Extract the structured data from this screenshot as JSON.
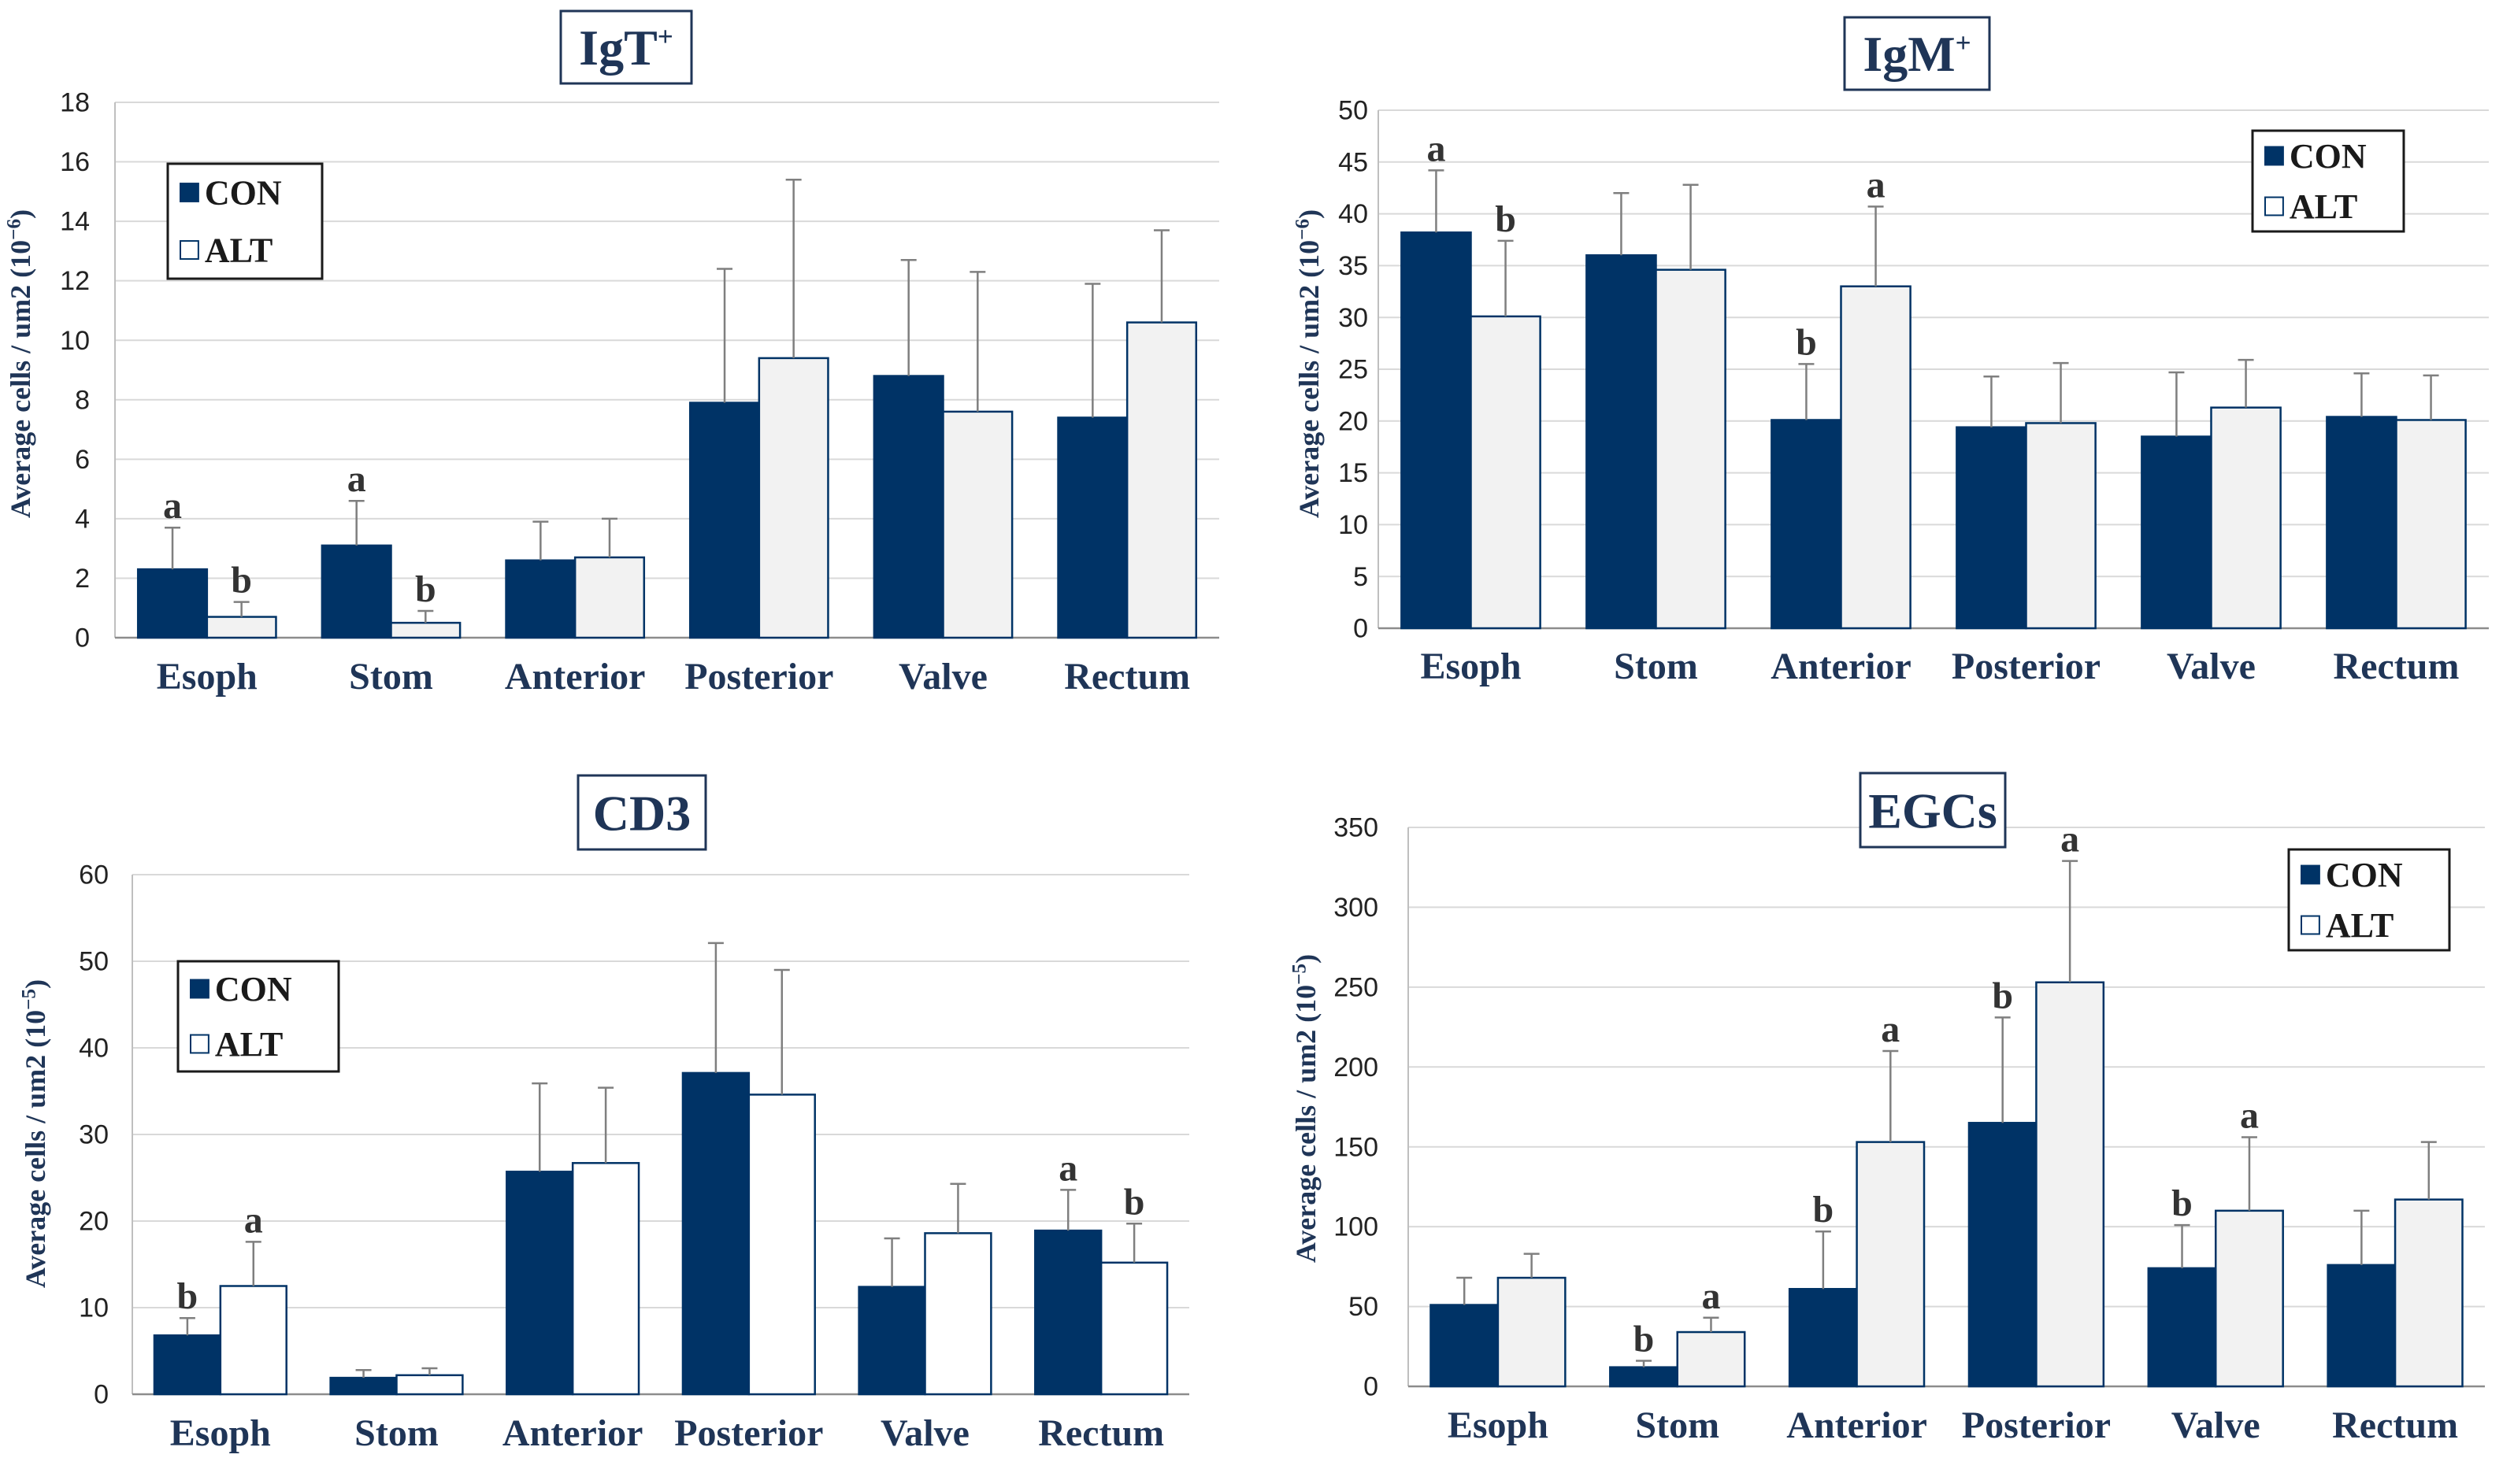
{
  "chart_data": [
    {
      "type": "bar",
      "title": "IgT",
      "title_sup": "+",
      "ylabel": "Average cells / um2 (10",
      "ylabel_exp": "−6",
      "ylabel_close": ")",
      "ylim": [
        0,
        18
      ],
      "ystep": 2,
      "categories": [
        "Esoph",
        "Stom",
        "Anterior",
        "Posterior",
        "Valve",
        "Rectum"
      ],
      "series": [
        {
          "name": "CON",
          "values": [
            2.3,
            3.1,
            2.6,
            7.9,
            8.8,
            7.4
          ],
          "errors": [
            1.4,
            1.5,
            1.3,
            4.5,
            3.9,
            4.5
          ],
          "letters": [
            "a",
            "a",
            "",
            "",
            "",
            ""
          ],
          "color": "#003366"
        },
        {
          "name": "ALT",
          "values": [
            0.7,
            0.5,
            2.7,
            9.4,
            7.6,
            10.6
          ],
          "errors": [
            0.5,
            0.4,
            1.3,
            6.0,
            4.7,
            3.1
          ],
          "letters": [
            "b",
            "b",
            "",
            "",
            "",
            ""
          ],
          "color": "#f2f2f2"
        }
      ],
      "legend": {
        "position": "top-left",
        "con_label": "CON",
        "alt_label": "ALT"
      },
      "grid": true
    },
    {
      "type": "bar",
      "title": "IgM",
      "title_sup": "+",
      "ylabel": "Average cells / um2 (10",
      "ylabel_exp": "−6",
      "ylabel_close": ")",
      "ylim": [
        0,
        50
      ],
      "ystep": 5,
      "categories": [
        "Esoph",
        "Stom",
        "Anterior",
        "Posterior",
        "Valve",
        "Rectum"
      ],
      "series": [
        {
          "name": "CON",
          "values": [
            38.2,
            36.0,
            20.1,
            19.4,
            18.5,
            20.4
          ],
          "errors": [
            6.0,
            6.0,
            5.4,
            4.9,
            6.2,
            4.2
          ],
          "letters": [
            "a",
            "",
            "b",
            "",
            "",
            ""
          ],
          "color": "#003366"
        },
        {
          "name": "ALT",
          "values": [
            30.1,
            34.6,
            33.0,
            19.8,
            21.3,
            20.1
          ],
          "errors": [
            7.3,
            8.2,
            7.7,
            5.8,
            4.6,
            4.3
          ],
          "letters": [
            "b",
            "",
            "a",
            "",
            "",
            ""
          ],
          "color": "#f2f2f2"
        }
      ],
      "legend": {
        "position": "top-right",
        "con_label": "CON",
        "alt_label": "ALT"
      },
      "grid": true
    },
    {
      "type": "bar",
      "title": "CD3",
      "title_sup": "",
      "ylabel": "Average cells / um2 (10",
      "ylabel_exp": "−5",
      "ylabel_close": ")",
      "ylim": [
        0,
        60
      ],
      "ystep": 10,
      "categories": [
        "Esoph",
        "Stom",
        "Anterior",
        "Posterior",
        "Valve",
        "Rectum"
      ],
      "series": [
        {
          "name": "CON",
          "values": [
            6.8,
            1.9,
            25.7,
            37.1,
            12.4,
            18.9
          ],
          "errors": [
            2.0,
            0.9,
            10.2,
            15.0,
            5.6,
            4.7
          ],
          "letters": [
            "b",
            "",
            "",
            "",
            "",
            "a"
          ],
          "color": "#003366"
        },
        {
          "name": "ALT",
          "values": [
            12.5,
            2.2,
            26.7,
            34.6,
            18.6,
            15.2
          ],
          "errors": [
            5.1,
            0.8,
            8.7,
            14.4,
            5.7,
            4.5
          ],
          "letters": [
            "a",
            "",
            "",
            "",
            "",
            "b"
          ],
          "color": "#ffffff"
        }
      ],
      "legend": {
        "position": "top-left",
        "con_label": "CON",
        "alt_label": "ALT"
      },
      "grid": true
    },
    {
      "type": "bar",
      "title": "EGCs",
      "title_sup": "",
      "ylabel": "Average cells / um2 (10",
      "ylabel_exp": "−5",
      "ylabel_close": ")",
      "ylim": [
        0,
        350
      ],
      "ystep": 50,
      "categories": [
        "Esoph",
        "Stom",
        "Anterior",
        "Posterior",
        "Valve",
        "Rectum"
      ],
      "series": [
        {
          "name": "CON",
          "values": [
            51,
            12,
            61,
            165,
            74,
            76
          ],
          "errors": [
            17,
            4,
            36,
            66,
            27,
            34
          ],
          "letters": [
            "",
            "b",
            "b",
            "b",
            "b",
            ""
          ],
          "color": "#003366"
        },
        {
          "name": "ALT",
          "values": [
            68,
            34,
            153,
            253,
            110,
            117
          ],
          "errors": [
            15,
            9,
            57,
            76,
            46,
            36
          ],
          "letters": [
            "",
            "a",
            "a",
            "a",
            "a",
            ""
          ],
          "color": "#f2f2f2"
        }
      ],
      "legend": {
        "position": "top-right",
        "con_label": "CON",
        "alt_label": "ALT"
      },
      "grid": true
    }
  ]
}
